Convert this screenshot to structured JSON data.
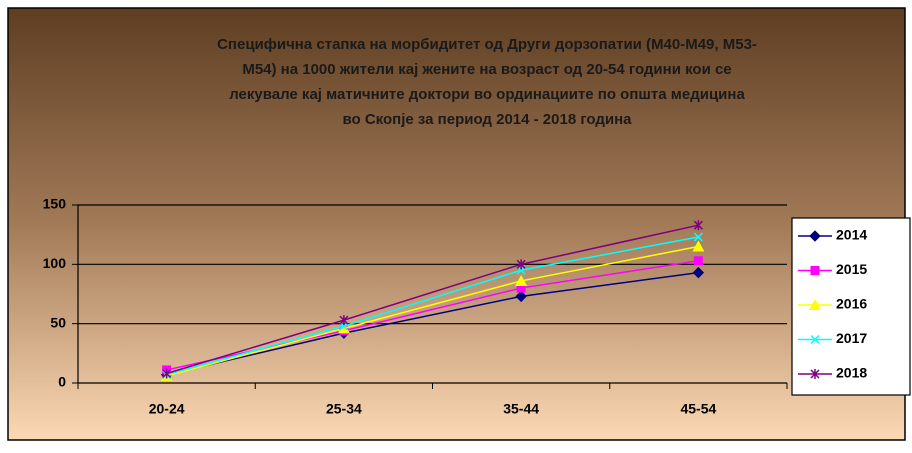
{
  "chart_data": {
    "type": "line",
    "title": [
      "Специфична стапка на морбидитет од Други дорзопатии (М40-М49, М53-",
      "М54) на 1000 жители кај жените на возраст од 20-54 години кои се",
      "лекувале кај матичните доктори во ординациите по општа медицина",
      "во Скопје за период 2014 - 2018 година"
    ],
    "categories": [
      "20-24",
      "25-34",
      "35-44",
      "45-54"
    ],
    "series": [
      {
        "name": "2014",
        "color": "#000080",
        "marker": "diamond",
        "values": [
          7,
          42,
          73,
          93
        ]
      },
      {
        "name": "2015",
        "color": "#ff00ff",
        "marker": "square",
        "values": [
          11,
          44,
          80,
          103
        ]
      },
      {
        "name": "2016",
        "color": "#ffff00",
        "marker": "triangle",
        "values": [
          6,
          46,
          86,
          115
        ]
      },
      {
        "name": "2017",
        "color": "#00ffff",
        "marker": "x",
        "values": [
          7,
          48,
          95,
          123
        ]
      },
      {
        "name": "2018",
        "color": "#800080",
        "marker": "star",
        "values": [
          8,
          53,
          100,
          133
        ]
      }
    ],
    "ylim": [
      0,
      150
    ],
    "yticks": [
      0,
      50,
      100,
      150
    ],
    "grid": true,
    "legend": "right"
  }
}
